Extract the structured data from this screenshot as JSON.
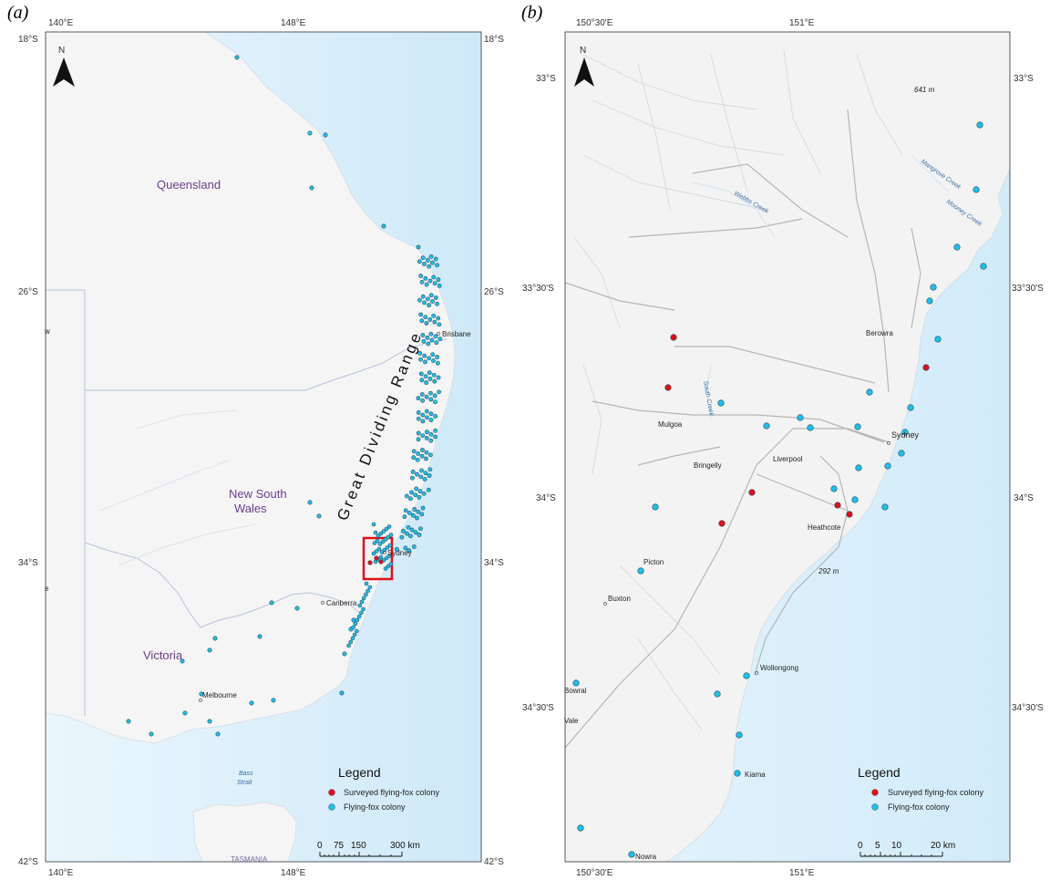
{
  "panels": {
    "a": {
      "label": "(a)",
      "north": "N",
      "top_ticks": [
        "140°E",
        "148°E"
      ],
      "bottom_ticks": [
        "140°E",
        "148°E"
      ],
      "left_ticks": [
        "18°S",
        "26°S",
        "34°S",
        "42°S"
      ],
      "right_ticks": [
        "18°S",
        "26°S",
        "34°S",
        "42°S"
      ],
      "states": {
        "qld": "Queensland",
        "nsw_1": "New South",
        "nsw_2": "Wales",
        "vic": "Victoria"
      },
      "range_label": "Great Dividing Range",
      "places": {
        "brisbane": "Brisbane",
        "sydney": "Sydney",
        "canberra": "Canberra",
        "melbourne": "Melbourne",
        "tasmania": "TASMANIA",
        "edge_w": "w",
        "edge_e": "e"
      },
      "water": {
        "bass_1": "Bass",
        "bass_2": "Strait"
      },
      "legend": {
        "title": "Legend",
        "surveyed": "Surveyed flying-fox colony",
        "colony": "Flying-fox colony"
      },
      "scale": {
        "ticks": [
          "0",
          "75",
          "150",
          "300 km"
        ]
      }
    },
    "b": {
      "label": "(b)",
      "north": "N",
      "top_ticks": [
        "150°30'E",
        "151°E"
      ],
      "bottom_ticks": [
        "150°30'E",
        "151°E"
      ],
      "left_ticks": [
        "33°S",
        "33°30'S",
        "34°S",
        "34°30'S"
      ],
      "right_ticks": [
        "33°S",
        "33°30'S",
        "34°S",
        "34°30'S"
      ],
      "places": {
        "berowra": "Berowra",
        "mulgoa": "Mulgoa",
        "bringelly": "Bringelly",
        "liverpool": "Liverpool",
        "sydney": "Sydney",
        "heathcote": "Heathcote",
        "picton": "Picton",
        "buxton": "Buxton",
        "wollongong": "Wollongong",
        "bowral": "Bowral",
        "vale": "Vale",
        "kiama": "Kiama",
        "nowra": "Nowra",
        "elev1": "641 m",
        "elev2": "292 m"
      },
      "water": {
        "web": "Webbs Creek",
        "mangrove": "Mangrove Creek",
        "mooney": "Mooney Creek",
        "south": "South Creek"
      },
      "legend": {
        "title": "Legend",
        "surveyed": "Surveyed flying-fox colony",
        "colony": "Flying-fox colony"
      },
      "scale": {
        "ticks": [
          "0",
          "5",
          "10",
          "20 km"
        ]
      }
    }
  },
  "colors": {
    "surveyed": "#e0101a",
    "colony": "#1ec0ea",
    "sea": "#d8eef9",
    "land": "#f4f4f4",
    "state_line": "#b8c2de"
  }
}
